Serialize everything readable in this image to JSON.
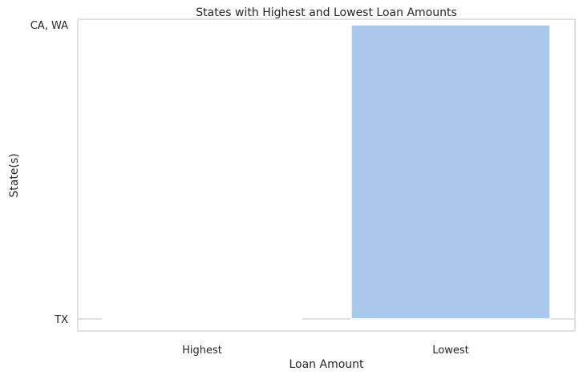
{
  "chart_data": {
    "type": "bar",
    "title": "States with Highest and Lowest Loan Amounts",
    "xlabel": "Loan Amount",
    "ylabel": "State(s)",
    "categories": [
      "Highest",
      "Lowest"
    ],
    "y_categories": [
      "TX",
      "CA, WA"
    ],
    "values": [
      "TX",
      "CA, WA"
    ],
    "grid": false,
    "bar_color": "#abc9ec"
  }
}
